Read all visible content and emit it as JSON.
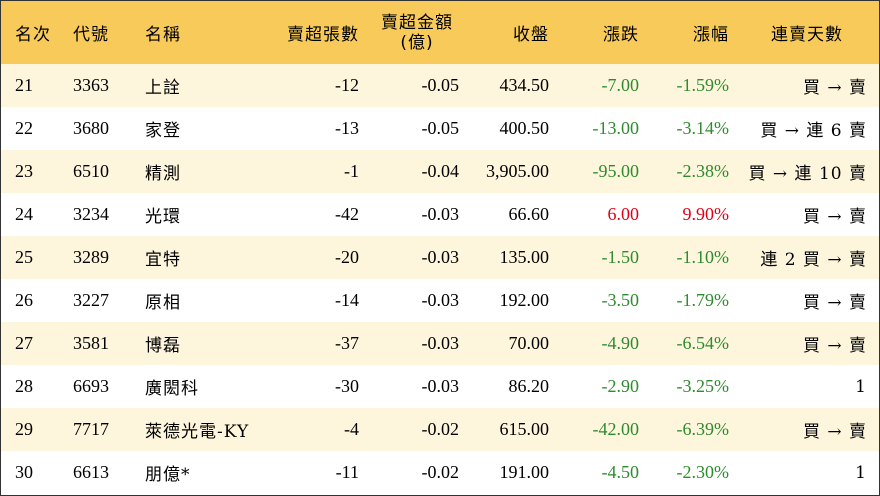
{
  "columns": {
    "rank": "名次",
    "code": "代號",
    "name": "名稱",
    "sell_lots": "賣超張數",
    "sell_amount_line1": "賣超金額",
    "sell_amount_line2": "(億)",
    "close": "收盤",
    "change": "漲跌",
    "pct": "漲幅",
    "streak": "連賣天數"
  },
  "colors": {
    "header_bg": "#f8ca5a",
    "alt_row_bg": "#fef5dd",
    "negative": "#2e8b2e",
    "positive": "#e0001a"
  },
  "rows": [
    {
      "rank": "21",
      "code": "3363",
      "name": "上詮",
      "sell_lots": "-12",
      "sell_amount": "-0.05",
      "close": "434.50",
      "change": "-7.00",
      "pct": "-1.59%",
      "streak": "買 → 賣",
      "dir": "neg"
    },
    {
      "rank": "22",
      "code": "3680",
      "name": "家登",
      "sell_lots": "-13",
      "sell_amount": "-0.05",
      "close": "400.50",
      "change": "-13.00",
      "pct": "-3.14%",
      "streak": "買 → 連 6 賣",
      "dir": "neg"
    },
    {
      "rank": "23",
      "code": "6510",
      "name": "精測",
      "sell_lots": "-1",
      "sell_amount": "-0.04",
      "close": "3,905.00",
      "change": "-95.00",
      "pct": "-2.38%",
      "streak": "買 → 連 10 賣",
      "dir": "neg"
    },
    {
      "rank": "24",
      "code": "3234",
      "name": "光環",
      "sell_lots": "-42",
      "sell_amount": "-0.03",
      "close": "66.60",
      "change": "6.00",
      "pct": "9.90%",
      "streak": "買 → 賣",
      "dir": "pos"
    },
    {
      "rank": "25",
      "code": "3289",
      "name": "宜特",
      "sell_lots": "-20",
      "sell_amount": "-0.03",
      "close": "135.00",
      "change": "-1.50",
      "pct": "-1.10%",
      "streak": "連 2 買 → 賣",
      "dir": "neg"
    },
    {
      "rank": "26",
      "code": "3227",
      "name": "原相",
      "sell_lots": "-14",
      "sell_amount": "-0.03",
      "close": "192.00",
      "change": "-3.50",
      "pct": "-1.79%",
      "streak": "買 → 賣",
      "dir": "neg"
    },
    {
      "rank": "27",
      "code": "3581",
      "name": "博磊",
      "sell_lots": "-37",
      "sell_amount": "-0.03",
      "close": "70.00",
      "change": "-4.90",
      "pct": "-6.54%",
      "streak": "買 → 賣",
      "dir": "neg"
    },
    {
      "rank": "28",
      "code": "6693",
      "name": "廣閎科",
      "sell_lots": "-30",
      "sell_amount": "-0.03",
      "close": "86.20",
      "change": "-2.90",
      "pct": "-3.25%",
      "streak": "1",
      "dir": "neg"
    },
    {
      "rank": "29",
      "code": "7717",
      "name": "萊德光電-KY",
      "sell_lots": "-4",
      "sell_amount": "-0.02",
      "close": "615.00",
      "change": "-42.00",
      "pct": "-6.39%",
      "streak": "買 → 賣",
      "dir": "neg"
    },
    {
      "rank": "30",
      "code": "6613",
      "name": "朋億*",
      "sell_lots": "-11",
      "sell_amount": "-0.02",
      "close": "191.00",
      "change": "-4.50",
      "pct": "-2.30%",
      "streak": "1",
      "dir": "neg"
    }
  ]
}
